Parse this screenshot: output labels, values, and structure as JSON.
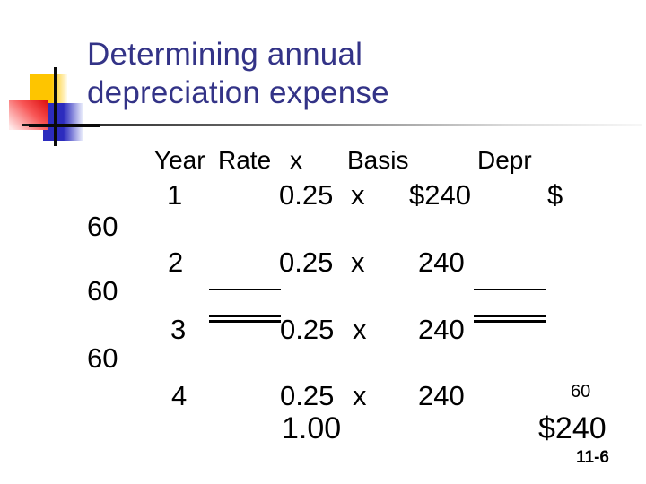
{
  "slide": {
    "title_line1": "Determining annual",
    "title_line2": "depreciation expense",
    "page_number": "11-6",
    "colors": {
      "title_text": "#333387",
      "accent_yellow": "#fec500",
      "accent_red": "#dd0f0f",
      "accent_blue": "#2c2cbe"
    }
  },
  "table": {
    "headers": [
      "Year",
      "Rate",
      "x",
      "Basis",
      "Depr"
    ],
    "rows": [
      {
        "year": "1",
        "rate": "0.25",
        "times": "x",
        "basis": "$240",
        "depr": "$",
        "depr_wrapped": "60"
      },
      {
        "year": "2",
        "rate": "0.25",
        "times": "x",
        "basis": "240",
        "depr": "",
        "depr_wrapped": "60"
      },
      {
        "year": "3",
        "rate": "0.25",
        "times": "x",
        "basis": "240",
        "depr": "",
        "depr_wrapped": "60"
      },
      {
        "year": "4",
        "rate": "0.25",
        "times": "x",
        "basis": "240",
        "depr": "60",
        "depr_wrapped": ""
      }
    ],
    "totals": {
      "rate": "1.00",
      "depr": "$240"
    }
  }
}
